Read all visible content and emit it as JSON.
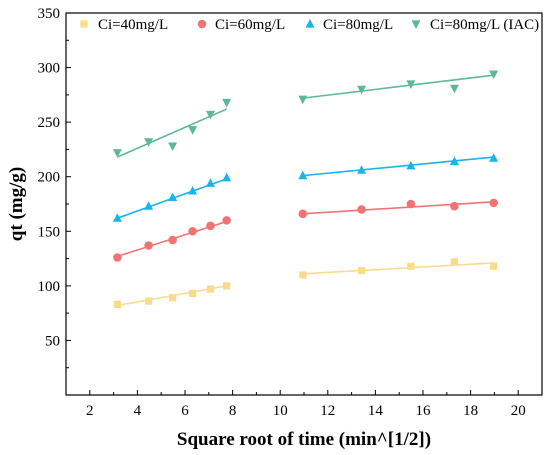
{
  "chart_data": {
    "type": "scatter",
    "xlabel": "Square root of time (min^[1/2])",
    "ylabel": "qt (mg/g)",
    "xlim": [
      1,
      21
    ],
    "ylim": [
      0,
      350
    ],
    "xticks": [
      2,
      4,
      6,
      8,
      10,
      12,
      14,
      16,
      18,
      20
    ],
    "yticks": [
      50,
      100,
      150,
      200,
      250,
      300,
      350
    ],
    "grid": false,
    "legend_position": "top",
    "series": [
      {
        "name": "Ci=40mg/L",
        "color": "#f8dc8c",
        "marker": "square",
        "points": [
          [
            3.16,
            83
          ],
          [
            4.47,
            86
          ],
          [
            5.48,
            89
          ],
          [
            6.32,
            93
          ],
          [
            7.07,
            97
          ],
          [
            7.75,
            100
          ],
          [
            10.95,
            110
          ],
          [
            13.42,
            114
          ],
          [
            15.49,
            118
          ],
          [
            17.32,
            122
          ],
          [
            18.97,
            118
          ]
        ],
        "fit_segments": [
          [
            [
              3.16,
              82
            ],
            [
              7.75,
              100
            ]
          ],
          [
            [
              10.95,
              111
            ],
            [
              18.97,
              121
            ]
          ]
        ]
      },
      {
        "name": "Ci=60mg/L",
        "color": "#f07474",
        "marker": "circle",
        "points": [
          [
            3.16,
            126
          ],
          [
            4.47,
            137
          ],
          [
            5.48,
            142
          ],
          [
            6.32,
            150
          ],
          [
            7.07,
            155
          ],
          [
            7.75,
            160
          ],
          [
            10.95,
            166
          ],
          [
            13.42,
            170
          ],
          [
            15.49,
            175
          ],
          [
            17.32,
            173
          ],
          [
            18.97,
            176
          ]
        ],
        "fit_segments": [
          [
            [
              3.16,
              127
            ],
            [
              7.75,
              159
            ]
          ],
          [
            [
              10.95,
              166
            ],
            [
              18.97,
              177
            ]
          ]
        ]
      },
      {
        "name": "Ci=80mg/L",
        "color": "#18b4ec",
        "marker": "triangle-up",
        "points": [
          [
            3.16,
            162
          ],
          [
            4.47,
            173
          ],
          [
            5.48,
            181
          ],
          [
            6.32,
            187
          ],
          [
            7.07,
            194
          ],
          [
            7.75,
            199
          ],
          [
            10.95,
            201
          ],
          [
            13.42,
            206
          ],
          [
            15.49,
            210
          ],
          [
            17.32,
            214
          ],
          [
            18.97,
            217
          ]
        ],
        "fit_segments": [
          [
            [
              3.16,
              162
            ],
            [
              7.75,
              198
            ]
          ],
          [
            [
              10.95,
              201
            ],
            [
              18.97,
              218
            ]
          ]
        ]
      },
      {
        "name": "Ci=80mg/L (IAC)",
        "color": "#5bb898",
        "marker": "triangle-down",
        "points": [
          [
            3.16,
            222
          ],
          [
            4.47,
            232
          ],
          [
            5.48,
            228
          ],
          [
            6.32,
            243
          ],
          [
            7.07,
            257
          ],
          [
            7.75,
            268
          ],
          [
            10.95,
            271
          ],
          [
            13.42,
            280
          ],
          [
            15.49,
            285
          ],
          [
            17.32,
            281
          ],
          [
            18.97,
            294
          ]
        ],
        "fit_segments": [
          [
            [
              3.16,
              218
            ],
            [
              7.75,
              262
            ]
          ],
          [
            [
              10.95,
              272
            ],
            [
              18.97,
              293
            ]
          ]
        ]
      }
    ]
  }
}
